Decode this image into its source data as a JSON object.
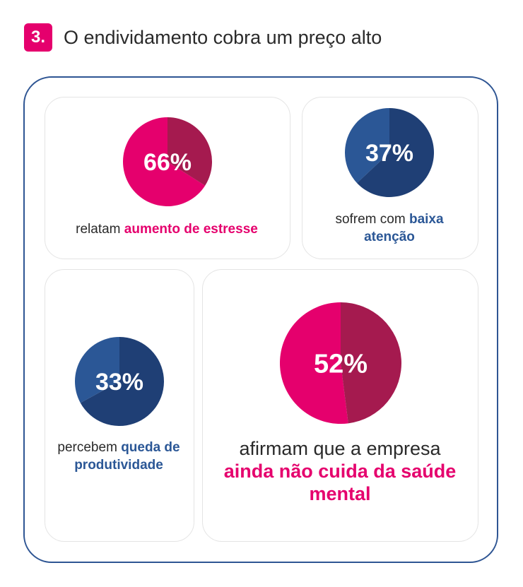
{
  "header": {
    "number": "3.",
    "title": "O endividamento cobra um preço alto"
  },
  "colors": {
    "pink": "#E5006D",
    "dark_pink": "#A51A4F",
    "blue": "#2B5796",
    "dark_blue": "#1F3F75",
    "border": "#2E5593"
  },
  "chart_data": [
    {
      "type": "pie",
      "value_label": "66%",
      "values": [
        66,
        34
      ],
      "colors": [
        "#E5006D",
        "#A51A4F"
      ],
      "caption_plain": "relatam ",
      "caption_bold": "aumento de estresse"
    },
    {
      "type": "pie",
      "value_label": "37%",
      "values": [
        37,
        63
      ],
      "colors": [
        "#2B5796",
        "#1F3F75"
      ],
      "caption_plain": "sofrem com ",
      "caption_bold": "baixa atenção"
    },
    {
      "type": "pie",
      "value_label": "33%",
      "values": [
        33,
        67
      ],
      "colors": [
        "#2B5796",
        "#1F3F75"
      ],
      "caption_plain": "percebem ",
      "caption_bold": "queda de produtividade"
    },
    {
      "type": "pie",
      "value_label": "52%",
      "values": [
        52,
        48
      ],
      "colors": [
        "#E5006D",
        "#A51A4F"
      ],
      "caption_plain": "afirmam que a empresa ",
      "caption_bold": "ainda não cuida da saúde mental"
    }
  ]
}
